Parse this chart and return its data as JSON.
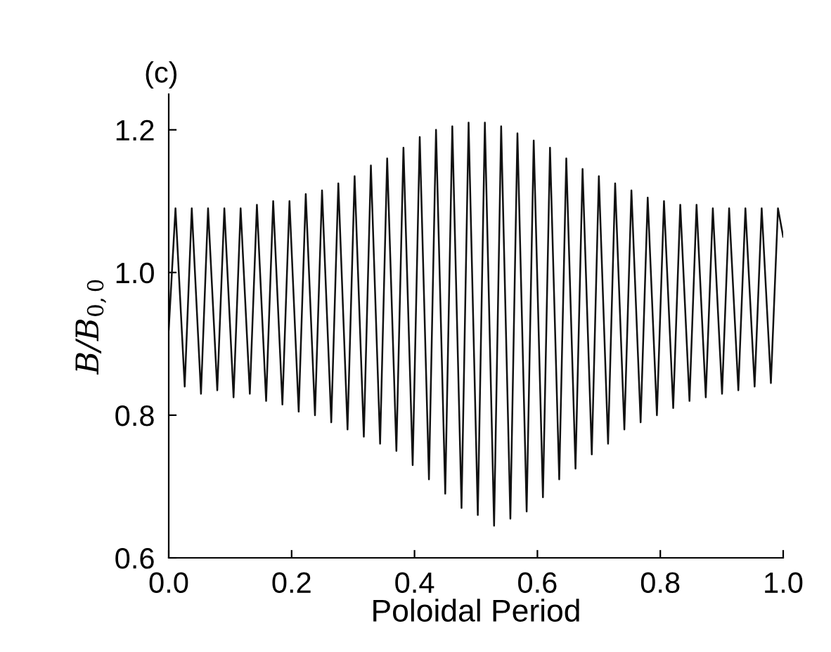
{
  "chart_data": {
    "type": "line",
    "title": "(c)",
    "xlabel": "Poloidal Period",
    "ylabel": "B/B$_{0,0}$",
    "xlim": [
      0.0,
      1.0
    ],
    "ylim": [
      0.6,
      1.25
    ],
    "xticks": [
      {
        "value": 0,
        "label": "0.0"
      },
      0.2,
      0.4,
      0.6,
      0.8,
      {
        "value": 1,
        "label": "1.0"
      }
    ],
    "yticks": [
      0.6,
      0.8,
      {
        "value": 1,
        "label": "1.0"
      },
      1.2
    ],
    "grid": false,
    "legend": false,
    "marker": "none",
    "line_style": "solid",
    "series": [
      {
        "color": "#111111",
        "x": [
          0,
          0.011,
          0.026,
          0.0375,
          0.0525,
          0.064,
          0.079,
          0.0905,
          0.1055,
          0.117,
          0.132,
          0.1435,
          0.1585,
          0.17,
          0.185,
          0.1965,
          0.2115,
          0.223,
          0.238,
          0.2495,
          0.2645,
          0.276,
          0.291,
          0.3025,
          0.3175,
          0.329,
          0.344,
          0.3555,
          0.3705,
          0.382,
          0.397,
          0.4085,
          0.4235,
          0.435,
          0.45,
          0.4615,
          0.4765,
          0.488,
          0.503,
          0.5145,
          0.5295,
          0.541,
          0.556,
          0.5675,
          0.5825,
          0.594,
          0.609,
          0.6205,
          0.6355,
          0.647,
          0.662,
          0.6735,
          0.6885,
          0.7,
          0.715,
          0.7265,
          0.7415,
          0.753,
          0.768,
          0.7795,
          0.7945,
          0.806,
          0.821,
          0.8325,
          0.8475,
          0.859,
          0.874,
          0.8855,
          0.9005,
          0.912,
          0.927,
          0.9385,
          0.9535,
          0.965,
          0.98,
          0.9915,
          1.0
        ],
        "values": [
          0.92,
          1.09,
          0.84,
          1.09,
          0.83,
          1.09,
          0.835,
          1.09,
          0.825,
          1.09,
          0.83,
          1.095,
          0.82,
          1.1,
          0.815,
          1.1,
          0.805,
          1.11,
          0.8,
          1.115,
          0.79,
          1.125,
          0.78,
          1.135,
          0.77,
          1.15,
          0.76,
          1.16,
          0.75,
          1.175,
          0.73,
          1.19,
          0.71,
          1.2,
          0.69,
          1.205,
          0.67,
          1.21,
          0.66,
          1.21,
          0.645,
          1.205,
          0.655,
          1.195,
          0.665,
          1.185,
          0.685,
          1.175,
          0.71,
          1.16,
          0.725,
          1.145,
          0.745,
          1.135,
          0.76,
          1.125,
          0.78,
          1.115,
          0.79,
          1.105,
          0.8,
          1.1,
          0.81,
          1.095,
          0.82,
          1.095,
          0.825,
          1.09,
          0.83,
          1.09,
          0.835,
          1.09,
          0.84,
          1.09,
          0.845,
          1.09,
          1.05
        ]
      }
    ]
  }
}
